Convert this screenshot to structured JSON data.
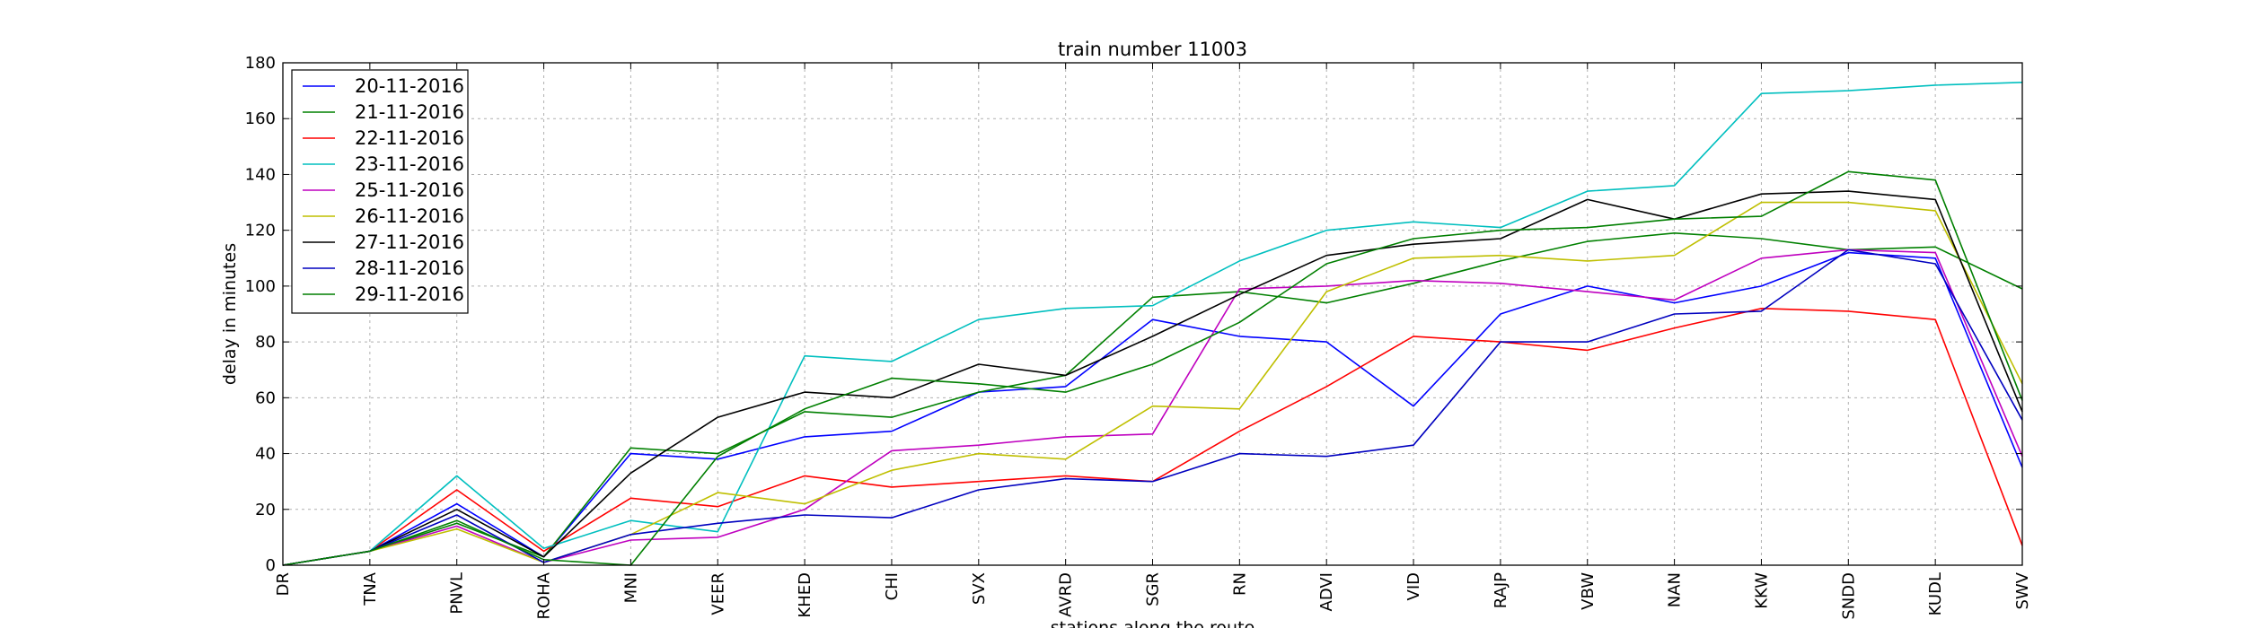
{
  "chart_data": {
    "type": "line",
    "title": "train number 11003",
    "xlabel": "stations along the route",
    "ylabel": "delay in minutes",
    "ylim": [
      0,
      180
    ],
    "yticks": [
      0,
      20,
      40,
      60,
      80,
      100,
      120,
      140,
      160,
      180
    ],
    "grid": true,
    "legend_position": "top-left",
    "categories": [
      "DR",
      "TNA",
      "PNVL",
      "ROHA",
      "MNI",
      "VEER",
      "KHED",
      "CHI",
      "SVX",
      "AVRD",
      "SGR",
      "RN",
      "ADVI",
      "VID",
      "RAJP",
      "VBW",
      "NAN",
      "KKW",
      "SNDD",
      "KUDL",
      "SWV"
    ],
    "series": [
      {
        "name": "20-11-2016",
        "color": "#0000ff",
        "values": [
          0,
          5,
          22,
          3,
          40,
          38,
          46,
          48,
          62,
          64,
          88,
          82,
          80,
          57,
          90,
          100,
          94,
          100,
          112,
          110,
          35
        ]
      },
      {
        "name": "21-11-2016",
        "color": "#008000",
        "values": [
          0,
          5,
          15,
          3,
          42,
          40,
          55,
          53,
          62,
          68,
          96,
          98,
          94,
          101,
          109,
          116,
          119,
          117,
          113,
          114,
          99
        ]
      },
      {
        "name": "22-11-2016",
        "color": "#ff0000",
        "values": [
          0,
          5,
          27,
          5,
          24,
          21,
          32,
          28,
          30,
          32,
          30,
          48,
          64,
          82,
          80,
          77,
          85,
          92,
          91,
          88,
          7
        ]
      },
      {
        "name": "23-11-2016",
        "color": "#00bfbf",
        "values": [
          0,
          5,
          32,
          6,
          16,
          12,
          75,
          73,
          88,
          92,
          93,
          109,
          120,
          123,
          121,
          134,
          136,
          169,
          170,
          172,
          173
        ]
      },
      {
        "name": "25-11-2016",
        "color": "#bf00bf",
        "values": [
          0,
          5,
          14,
          1,
          9,
          10,
          20,
          41,
          43,
          46,
          47,
          99,
          100,
          102,
          101,
          98,
          95,
          110,
          113,
          112,
          39
        ]
      },
      {
        "name": "26-11-2016",
        "color": "#bfbf00",
        "values": [
          0,
          5,
          13,
          1,
          11,
          26,
          22,
          34,
          40,
          38,
          57,
          56,
          98,
          110,
          111,
          109,
          111,
          130,
          130,
          127,
          65
        ]
      },
      {
        "name": "27-11-2016",
        "color": "#000000",
        "values": [
          0,
          5,
          20,
          3,
          33,
          53,
          62,
          60,
          72,
          68,
          82,
          97,
          111,
          115,
          117,
          131,
          124,
          133,
          134,
          131,
          55
        ]
      },
      {
        "name": "28-11-2016",
        "color": "#0000bf",
        "values": [
          0,
          5,
          18,
          1,
          11,
          15,
          18,
          17,
          27,
          31,
          30,
          40,
          39,
          43,
          80,
          80,
          90,
          91,
          113,
          108,
          52
        ]
      },
      {
        "name": "29-11-2016",
        "color": "#007f00",
        "values": [
          0,
          5,
          16,
          2,
          0,
          39,
          56,
          67,
          65,
          62,
          72,
          87,
          108,
          117,
          120,
          121,
          124,
          125,
          141,
          138,
          59
        ]
      }
    ]
  }
}
